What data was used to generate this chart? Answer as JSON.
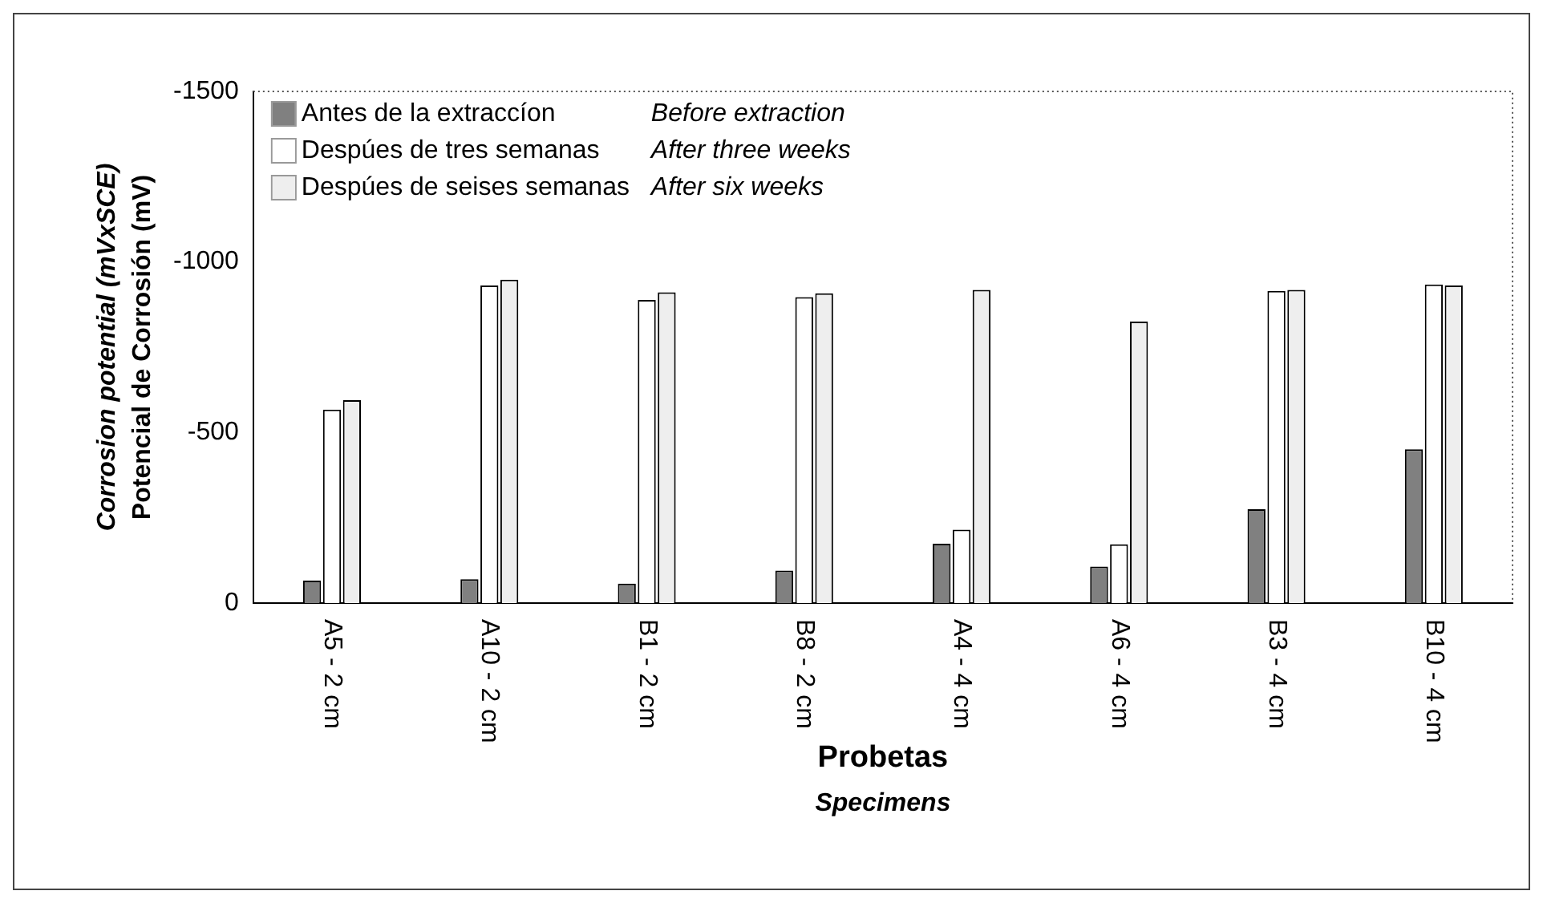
{
  "chart_data": {
    "type": "bar",
    "xlabel": "Probetas\nSpecimens",
    "ylabel": "Corrosion potential (mVxSCE)\nPotencial de Corrosión (mV)",
    "categories": [
      "A5 - 2 cm",
      "A10 - 2 cm",
      "B1 - 2 cm",
      "B8 - 2 cm",
      "A4 - 4 cm",
      "A6 - 4 cm",
      "B3 - 4 cm",
      "B10 - 4 cm"
    ],
    "series": [
      {
        "name": "Antes de la extraccíon",
        "color": "#808080",
        "values": [
          -66,
          -70,
          -57,
          -95,
          -174,
          -107,
          -275,
          -451
        ]
      },
      {
        "name": "Despúes de tres semanas",
        "color": "#ffffff",
        "values": [
          -567,
          -931,
          -889,
          -897,
          -215,
          -172,
          -915,
          -934
        ]
      },
      {
        "name": "Despúes de seises semanas",
        "color": "#eeeeee",
        "values": [
          -595,
          -948,
          -911,
          -908,
          -918,
          -825,
          -918,
          -931
        ]
      }
    ],
    "ylim": [
      0,
      -1500
    ],
    "yticks": [
      0,
      -500,
      -1000,
      -1500
    ],
    "grid": false,
    "legend": "top left",
    "annotations": [
      "Before extraction",
      "After three weeks",
      "After six weeks"
    ]
  }
}
